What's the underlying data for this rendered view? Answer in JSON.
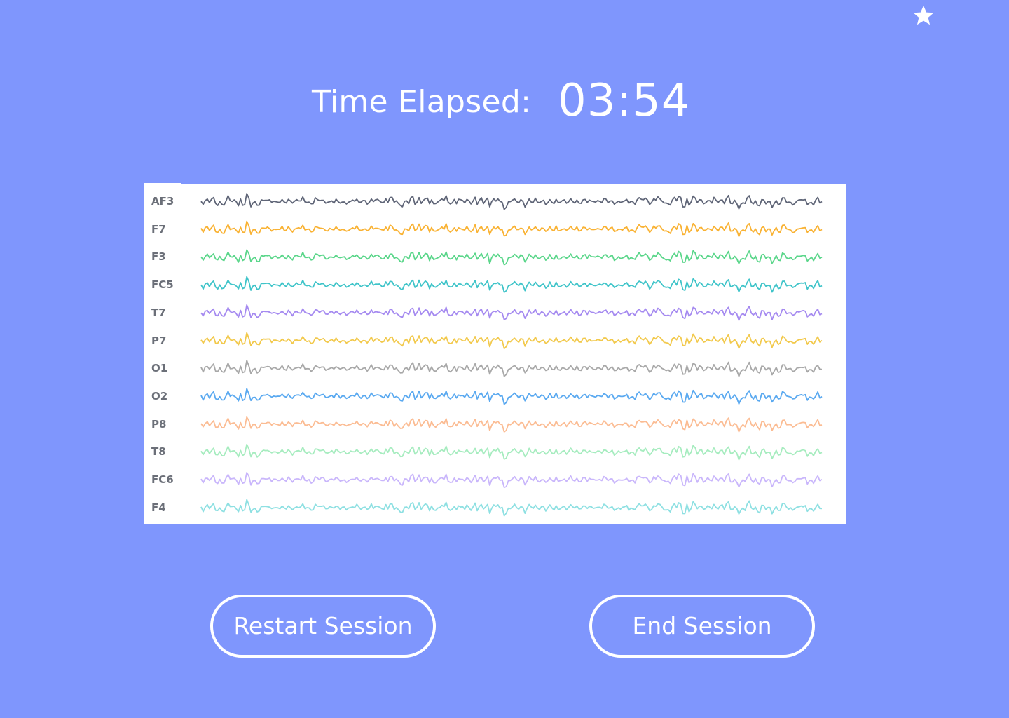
{
  "colors": {
    "background": "#7f96fd",
    "panel": "#ffffff",
    "label_text": "#6b6f78",
    "foreground": "#ffffff"
  },
  "header": {
    "favorite_icon": "star-icon"
  },
  "timer": {
    "label": "Time Elapsed:",
    "value": "03:54"
  },
  "eeg": {
    "channels": [
      {
        "label": "AF3",
        "color": "#5f6577"
      },
      {
        "label": "F7",
        "color": "#f9b233"
      },
      {
        "label": "F3",
        "color": "#5ad68a"
      },
      {
        "label": "FC5",
        "color": "#3fc4c9"
      },
      {
        "label": "T7",
        "color": "#a58af0"
      },
      {
        "label": "P7",
        "color": "#f2c94c"
      },
      {
        "label": "O1",
        "color": "#a8a8a8"
      },
      {
        "label": "O2",
        "color": "#5aa9f0"
      },
      {
        "label": "P8",
        "color": "#fbbc93"
      },
      {
        "label": "T8",
        "color": "#a6ecbf"
      },
      {
        "label": "FC6",
        "color": "#c9b6fb"
      },
      {
        "label": "F4",
        "color": "#8ee0e2"
      }
    ]
  },
  "actions": {
    "restart_label": "Restart Session",
    "end_label": "End Session"
  }
}
